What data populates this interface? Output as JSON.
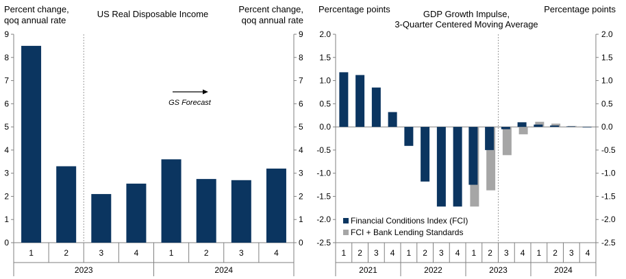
{
  "colors": {
    "navy": "#0b3560",
    "gray": "#a6a6a6",
    "axis": "#7f7f7f",
    "divider": "#9a9a9a"
  },
  "chart_data": [
    {
      "type": "bar",
      "title": "US Real Disposable Income",
      "ylabel_left": [
        "Percent change,",
        "qoq annual rate"
      ],
      "ylabel_right": [
        "Percent change,",
        "qoq annual rate"
      ],
      "ylim": [
        0,
        9
      ],
      "yticks": [
        "0",
        "1",
        "2",
        "3",
        "4",
        "5",
        "6",
        "7",
        "8",
        "9"
      ],
      "categories": [
        "1",
        "2",
        "3",
        "4",
        "1",
        "2",
        "3",
        "4"
      ],
      "years": [
        "2023",
        "2024"
      ],
      "values": [
        8.5,
        3.3,
        2.1,
        2.55,
        3.6,
        2.75,
        2.7,
        3.2
      ],
      "annotation": "GS Forecast",
      "forecast_divider_after_index": 1
    },
    {
      "type": "bar",
      "title": [
        "GDP Growth Impulse,",
        "3-Quarter Centered Moving Average"
      ],
      "ylabel_left": "Percentage points",
      "ylabel_right": "Percentage points",
      "ylim": [
        -2.5,
        2.0
      ],
      "yticks": [
        "2.0",
        "1.5",
        "1.0",
        "0.5",
        "0.0",
        "-0.5",
        "-1.0",
        "-1.5",
        "-2.0",
        "-2.5"
      ],
      "categories": [
        "1",
        "2",
        "3",
        "4",
        "1",
        "2",
        "3",
        "4",
        "1",
        "2",
        "3",
        "4",
        "1",
        "2",
        "3",
        "4"
      ],
      "years": [
        "2021",
        "2022",
        "2023",
        "2024"
      ],
      "series": [
        {
          "name": "Financial Conditions Index (FCI)",
          "values": [
            1.18,
            1.12,
            0.85,
            0.32,
            -0.41,
            -1.18,
            -1.72,
            -1.72,
            -1.25,
            -0.5,
            -0.05,
            0.1,
            0.05,
            0.03,
            0.01,
            -0.01
          ]
        },
        {
          "name": "FCI + Bank Lending Standards",
          "values": [
            null,
            null,
            null,
            null,
            null,
            null,
            null,
            null,
            -1.72,
            -1.37,
            -0.61,
            -0.16,
            0.11,
            0.07,
            0.02,
            -0.01
          ]
        }
      ],
      "forecast_divider_after_index": 9
    }
  ]
}
